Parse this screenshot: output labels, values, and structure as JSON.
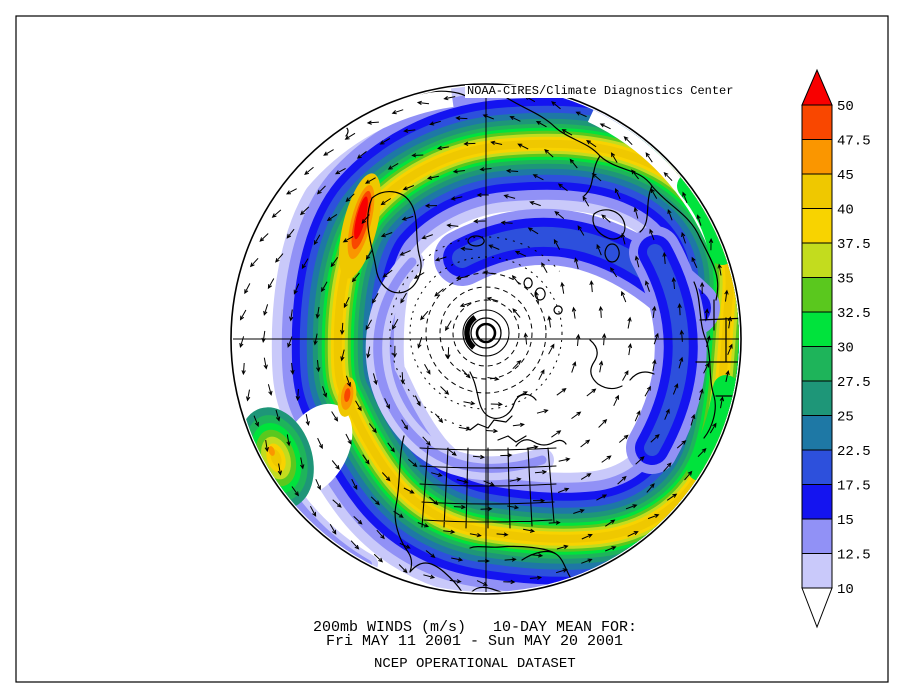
{
  "attribution": "NOAA-CIRES/Climate Diagnostics Center",
  "footer": {
    "line1": "200mb WINDS (m/s)   10-DAY MEAN FOR:",
    "line2": "Fri MAY 11 2001 - Sun MAY 20 2001",
    "line3": "NCEP OPERATIONAL DATASET"
  },
  "chart_data": {
    "type": "heatmap",
    "variable": "200mb WINDS",
    "unit": "m/s",
    "statistic": "10-DAY MEAN",
    "period_start": "Fri MAY 11 2001",
    "period_end": "Sun MAY 20 2001",
    "dataset": "NCEP OPERATIONAL DATASET",
    "attribution": "NOAA-CIRES/Climate Diagnostics Center",
    "projection": "Northern Hemisphere polar stereographic",
    "grid": "off",
    "legend_position": "right",
    "contour_levels": [
      10,
      12.5,
      15,
      17.5,
      22.5,
      25,
      27.5,
      30,
      32.5,
      35,
      37.5,
      40,
      45,
      47.5,
      50
    ],
    "colorbar": {
      "tick_labels": [
        "50",
        "47.5",
        "45",
        "40",
        "37.5",
        "35",
        "32.5",
        "30",
        "27.5",
        "25",
        "22.5",
        "17.5",
        "15",
        "12.5",
        "10"
      ],
      "over_color": "#F80000",
      "under_color": "#FFFFFF",
      "segments_top_to_bottom": [
        {
          "range": "47.5-50",
          "color": "#F94700"
        },
        {
          "range": "45-47.5",
          "color": "#FA9600"
        },
        {
          "range": "40-45",
          "color": "#EFC800"
        },
        {
          "range": "37.5-40",
          "color": "#F8D300"
        },
        {
          "range": "35-37.5",
          "color": "#C3DC1E"
        },
        {
          "range": "32.5-35",
          "color": "#5AC81E"
        },
        {
          "range": "30-32.5",
          "color": "#00E33C"
        },
        {
          "range": "27.5-30",
          "color": "#1EB45A"
        },
        {
          "range": "25-27.5",
          "color": "#1E9678"
        },
        {
          "range": "22.5-25",
          "color": "#1E78A5"
        },
        {
          "range": "17.5-22.5",
          "color": "#2D50DC"
        },
        {
          "range": "15-17.5",
          "color": "#1414F0"
        },
        {
          "range": "12.5-15",
          "color": "#9191F6"
        },
        {
          "range": "10-12.5",
          "color": "#C9C9FA"
        }
      ]
    },
    "palette": {
      "over": "#F80000",
      "47.5": "#F94700",
      "45": "#FA9600",
      "40": "#EFC800",
      "37.5": "#F8D300",
      "35": "#C3DC1E",
      "32.5": "#5AC81E",
      "30": "#00E33C",
      "27.5": "#1EB45A",
      "25": "#1E9678",
      "22.5": "#1E78A5",
      "17.5": "#2D50DC",
      "15": "#1414F0",
      "12.5": "#9191F6",
      "10": "#C9C9FA",
      "under": "#FFFFFF"
    },
    "features": [
      {
        "type": "wind-speed-maximum",
        "value": "> 50 m/s",
        "location": "north-west quadrant jet core"
      },
      {
        "type": "wind-speed-maximum",
        "value": "45-50 m/s",
        "location": "west of map centre"
      },
      {
        "type": "jet-band",
        "value": "35-45 m/s",
        "location": "spiral arc: top, upper-left, lower-left, bottom and right limb"
      },
      {
        "type": "calm-region",
        "value": "< 10 m/s",
        "location": "polar centre with closed contour rings"
      }
    ]
  }
}
